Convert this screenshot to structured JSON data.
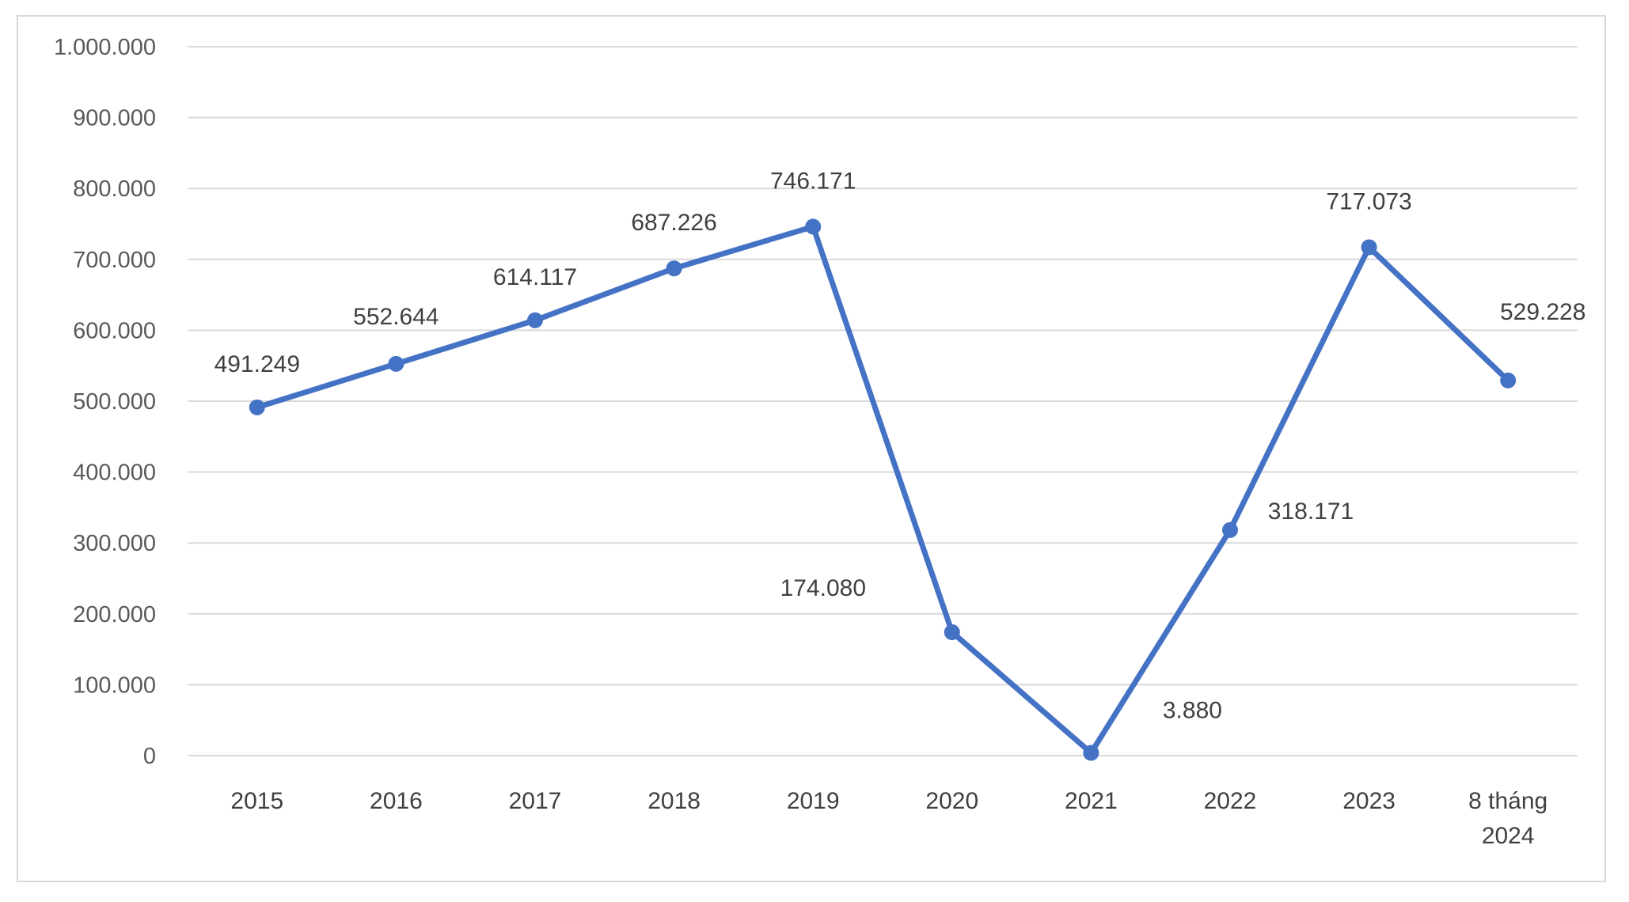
{
  "chart_data": {
    "type": "line",
    "categories": [
      "2015",
      "2016",
      "2017",
      "2018",
      "2019",
      "2020",
      "2021",
      "2022",
      "2023",
      "8 tháng 2024"
    ],
    "series": [
      {
        "values": [
          491249,
          552644,
          614117,
          687226,
          746171,
          174080,
          3880,
          318171,
          717073,
          529228
        ],
        "labels": [
          "491.249",
          "552.644",
          "614.117",
          "687.226",
          "746.171",
          "174.080",
          "3.880",
          "318.171",
          "717.073",
          "529.228"
        ],
        "color": "#4472c4"
      }
    ],
    "ylim": [
      0,
      1000000
    ],
    "yticks": [
      0,
      100000,
      200000,
      300000,
      400000,
      500000,
      600000,
      700000,
      800000,
      900000,
      1000000
    ],
    "ytick_labels": [
      "0",
      "100.000",
      "200.000",
      "300.000",
      "400.000",
      "500.000",
      "600.000",
      "700.000",
      "800.000",
      "900.000",
      "1.000.000"
    ],
    "grid": true,
    "legend": "none",
    "title": "",
    "xlabel": "",
    "ylabel": ""
  }
}
